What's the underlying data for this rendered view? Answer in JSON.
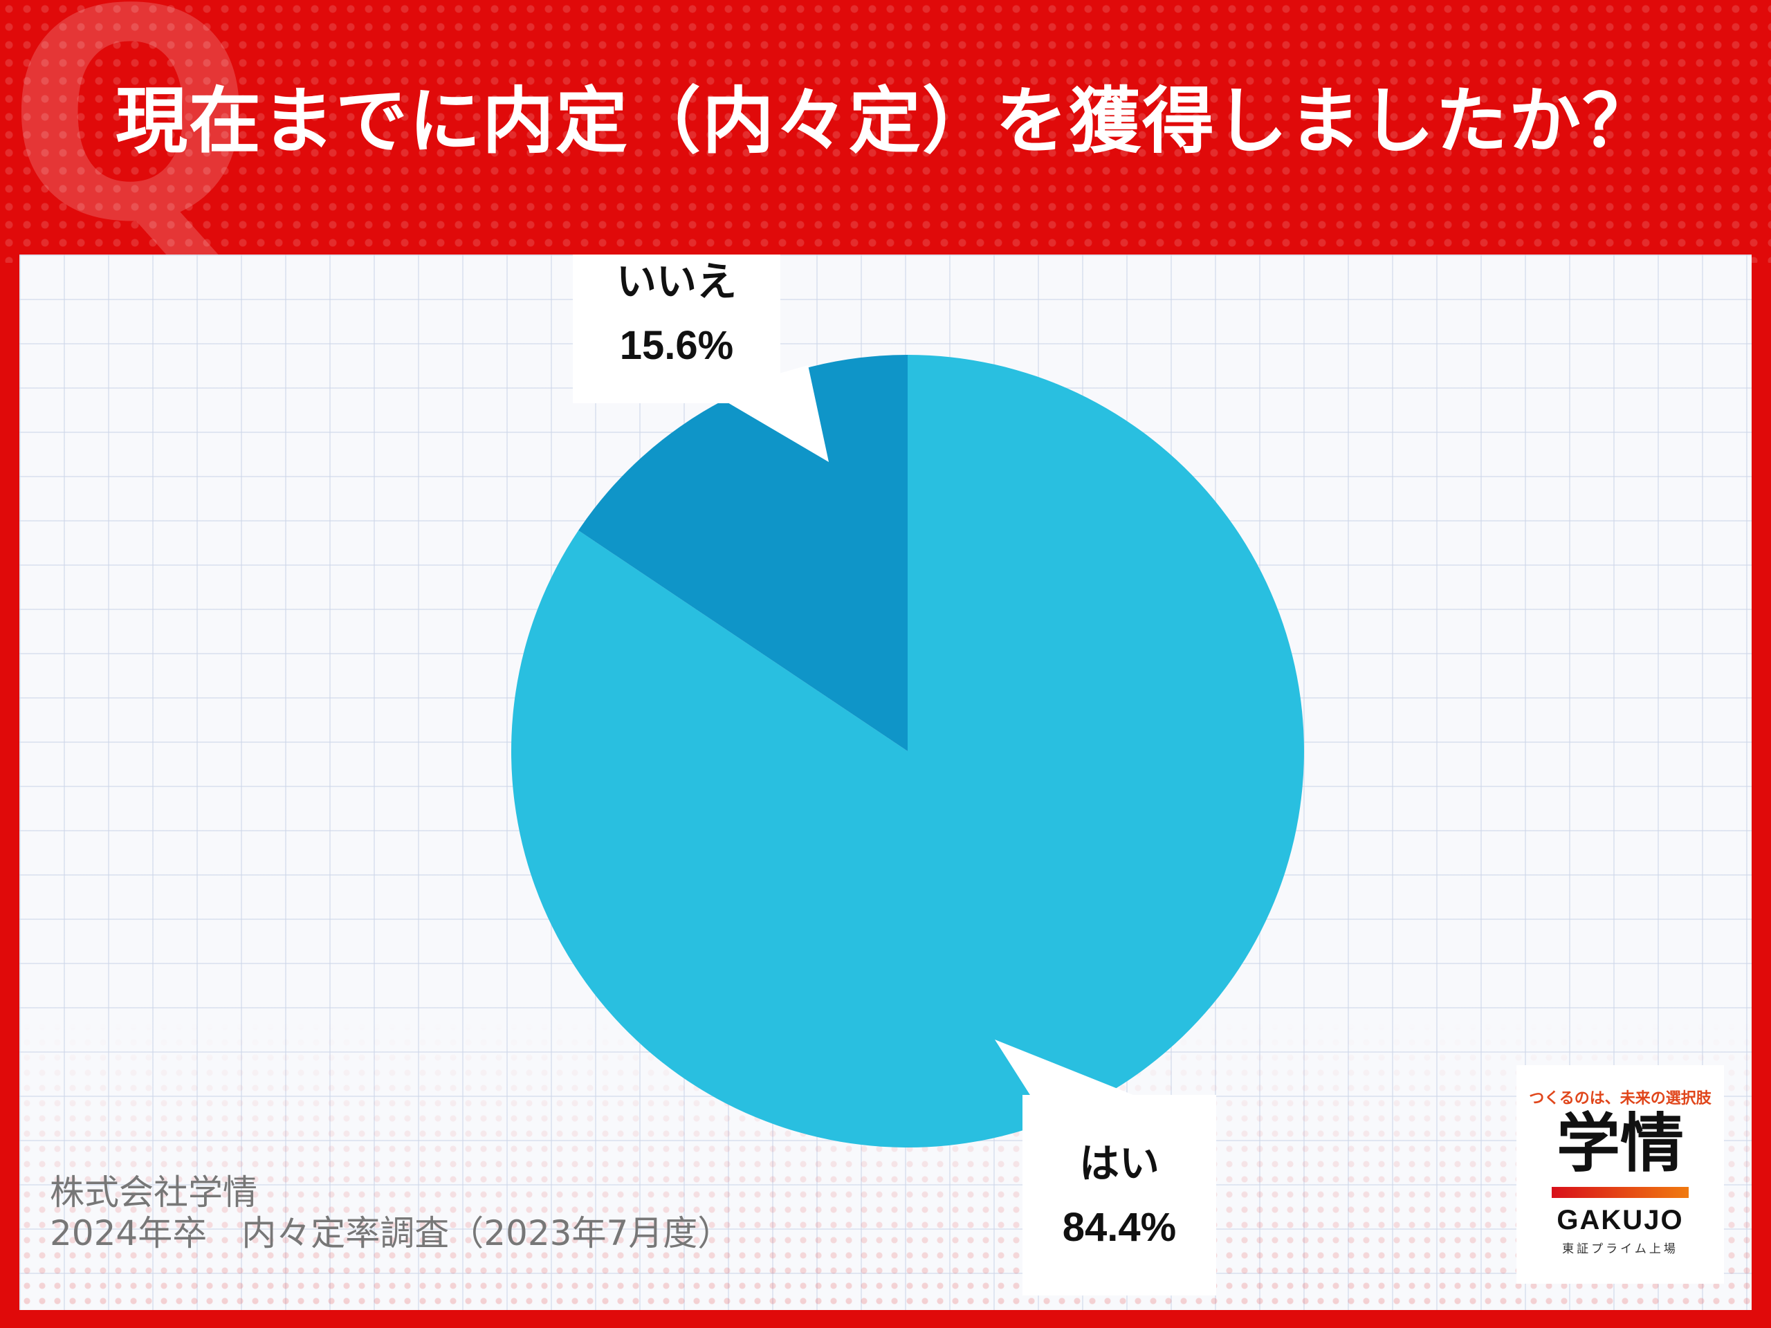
{
  "title": "現在までに内定（内々定）を獲得しましたか？",
  "q_mark": "Q",
  "chart_data": {
    "type": "pie",
    "title": "現在までに内定（内々定）を獲得しましたか？",
    "slices": [
      {
        "label": "はい",
        "value": 84.4,
        "value_text": "84.4%",
        "color": "#29bfe0"
      },
      {
        "label": "いいえ",
        "value": 15.6,
        "value_text": "15.6%",
        "color": "#0f95c8"
      }
    ],
    "start": "12 o'clock",
    "direction": "clockwise"
  },
  "source": {
    "line1": "株式会社学情",
    "line2": "2024年卒　内々定率調査（2023年7月度）"
  },
  "logo": {
    "tagline": "つくるのは、未来の選択肢",
    "kanji": "学情",
    "latin": "GAKUJO",
    "listing": "東証プライム上場"
  },
  "colors": {
    "background": "#e00a0a",
    "panel": "#f8f9fc"
  }
}
